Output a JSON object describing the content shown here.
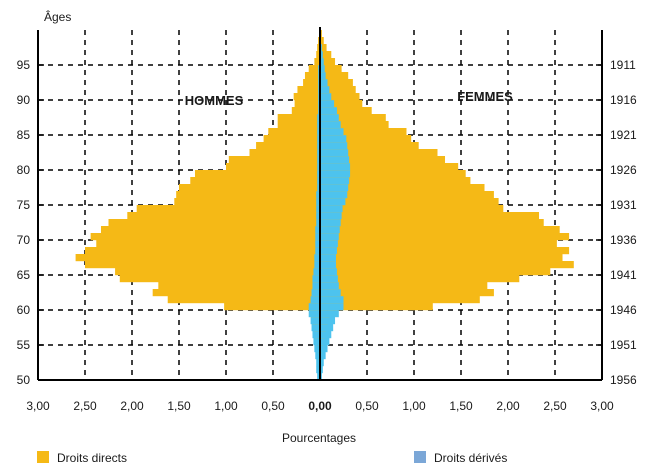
{
  "chart_data": {
    "type": "bar",
    "orientation": "horizontal-pyramid",
    "ylabel": "Âges",
    "xlabel": "Pourcentages",
    "side_labels": {
      "left": "HOMMES",
      "right": "FEMMES"
    },
    "x_ticks_left": [
      "3,00",
      "2,50",
      "2,00",
      "1,50",
      "1,00",
      "0,50"
    ],
    "x_tick_zero": "0,00",
    "x_ticks_right": [
      "0,50",
      "1,00",
      "1,50",
      "2,00",
      "2,50",
      "3,00"
    ],
    "xlim": [
      -3,
      3
    ],
    "ylim": [
      50,
      100
    ],
    "age_ticks": [
      "50",
      "55",
      "60",
      "65",
      "70",
      "75",
      "80",
      "85",
      "90",
      "95"
    ],
    "year_ticks": [
      "1956",
      "1951",
      "1946",
      "1941",
      "1936",
      "1931",
      "1926",
      "1921",
      "1916",
      "1911"
    ],
    "grid": "dashed",
    "legend": {
      "position": "bottom"
    },
    "colors": {
      "droits_directs": "#F5B916",
      "droits_derives": "#4DC3EE",
      "legend_derives_swatch": "#7BA7D7"
    },
    "ages": [
      50,
      51,
      52,
      53,
      54,
      55,
      56,
      57,
      58,
      59,
      60,
      61,
      62,
      63,
      64,
      65,
      66,
      67,
      68,
      69,
      70,
      71,
      72,
      73,
      74,
      75,
      76,
      77,
      78,
      79,
      80,
      81,
      82,
      83,
      84,
      85,
      86,
      87,
      88,
      89,
      90,
      91,
      92,
      93,
      94,
      95,
      96,
      97,
      98,
      99
    ],
    "series": [
      {
        "name": "Droits directs",
        "hommes": [
          0.01,
          0.01,
          0.01,
          0.02,
          0.02,
          0.03,
          0.05,
          0.06,
          0.08,
          0.1,
          1.02,
          1.62,
          1.78,
          1.72,
          2.13,
          2.18,
          2.5,
          2.6,
          2.5,
          2.38,
          2.44,
          2.33,
          2.25,
          2.05,
          1.95,
          1.55,
          1.53,
          1.5,
          1.38,
          1.33,
          1.0,
          0.97,
          0.75,
          0.68,
          0.6,
          0.55,
          0.45,
          0.45,
          0.3,
          0.27,
          0.28,
          0.24,
          0.18,
          0.16,
          0.12,
          0.06,
          0.04,
          0.03,
          0.02,
          0.01
        ],
        "femmes": [
          0.01,
          0.01,
          0.01,
          0.02,
          0.02,
          0.03,
          0.05,
          0.06,
          0.08,
          0.1,
          1.2,
          1.7,
          1.85,
          1.78,
          2.12,
          2.45,
          2.7,
          2.58,
          2.65,
          2.52,
          2.65,
          2.55,
          2.38,
          2.33,
          1.95,
          1.9,
          1.85,
          1.75,
          1.6,
          1.55,
          1.47,
          1.33,
          1.25,
          1.05,
          0.97,
          0.92,
          0.73,
          0.7,
          0.55,
          0.45,
          0.42,
          0.38,
          0.35,
          0.3,
          0.23,
          0.16,
          0.12,
          0.07,
          0.04,
          0.02
        ]
      },
      {
        "name": "Droits dérivés",
        "hommes": [
          0.03,
          0.04,
          0.04,
          0.05,
          0.06,
          0.07,
          0.08,
          0.09,
          0.1,
          0.12,
          0.12,
          0.1,
          0.09,
          0.08,
          0.08,
          0.07,
          0.06,
          0.06,
          0.05,
          0.05,
          0.05,
          0.05,
          0.04,
          0.04,
          0.04,
          0.04,
          0.04,
          0.03,
          0.03,
          0.03,
          0.03,
          0.03,
          0.03,
          0.03,
          0.03,
          0.03,
          0.03,
          0.03,
          0.02,
          0.02,
          0.02,
          0.02,
          0.02,
          0.02,
          0.02,
          0.01,
          0.01,
          0.01,
          0.01,
          0.01
        ],
        "femmes": [
          0.02,
          0.03,
          0.04,
          0.06,
          0.08,
          0.1,
          0.12,
          0.14,
          0.16,
          0.2,
          0.25,
          0.25,
          0.22,
          0.2,
          0.19,
          0.18,
          0.17,
          0.17,
          0.18,
          0.19,
          0.2,
          0.21,
          0.22,
          0.23,
          0.24,
          0.27,
          0.29,
          0.3,
          0.31,
          0.32,
          0.32,
          0.31,
          0.3,
          0.29,
          0.28,
          0.25,
          0.22,
          0.2,
          0.18,
          0.15,
          0.12,
          0.1,
          0.08,
          0.06,
          0.05,
          0.04,
          0.03,
          0.02,
          0.01,
          0.01
        ]
      }
    ]
  }
}
